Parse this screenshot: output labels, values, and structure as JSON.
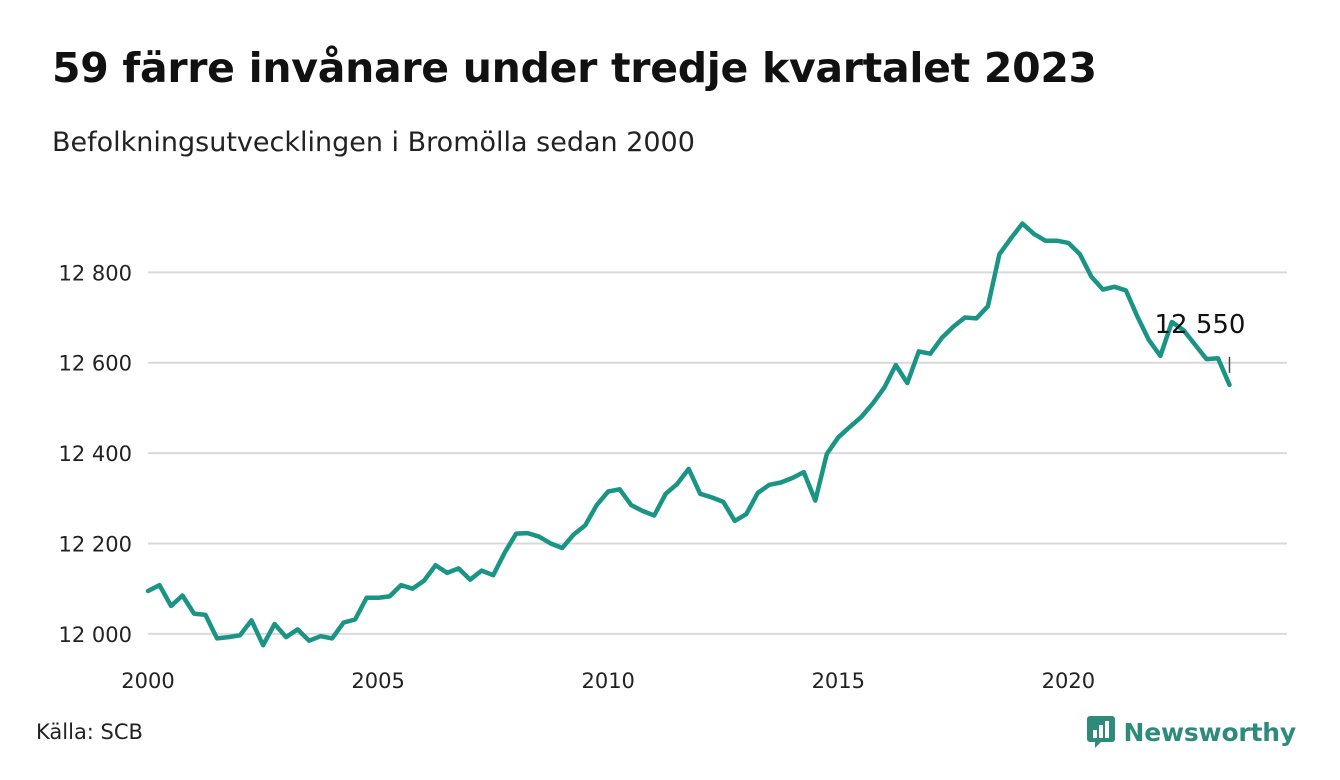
{
  "header": {
    "title": "59 färre invånare under tredje kvartalet 2023",
    "subtitle": "Befolkningsutvecklingen i Bromölla sedan 2000"
  },
  "footer": {
    "source": "Källa: SCB",
    "brand": "Newsworthy",
    "brand_icon": "newsworthy-logo-icon"
  },
  "colors": {
    "line": "#1a9485",
    "grid": "#d9d9d9",
    "text": "#111111",
    "brand": "#2e8b7b"
  },
  "chart_data": {
    "type": "line",
    "title": "59 färre invånare under tredje kvartalet 2023",
    "subtitle": "Befolkningsutvecklingen i Bromölla sedan 2000",
    "xlabel": "",
    "ylabel": "",
    "xlim": [
      2000,
      2024.75
    ],
    "ylim": [
      11960,
      12960
    ],
    "x_ticks": [
      2000,
      2005,
      2010,
      2015,
      2020
    ],
    "y_ticks": [
      12000,
      12200,
      12400,
      12600,
      12800
    ],
    "y_tick_labels": [
      "12 000",
      "12 200",
      "12 400",
      "12 600",
      "12 800"
    ],
    "grid": true,
    "legend": "none",
    "x_unit": "year (quarterly)",
    "series": [
      {
        "values": [
          12095,
          12108,
          12062,
          12085,
          12045,
          12042,
          11990,
          11993,
          11997,
          12030,
          11975,
          12022,
          11993,
          12010,
          11985,
          11995,
          11990,
          12025,
          12032,
          12080,
          12080,
          12083,
          12108,
          12100,
          12118,
          12152,
          12135,
          12145,
          12120,
          12140,
          12130,
          12180,
          12222,
          12223,
          12215,
          12200,
          12190,
          12220,
          12240,
          12285,
          12315,
          12320,
          12285,
          12272,
          12262,
          12310,
          12332,
          12365,
          12310,
          12302,
          12292,
          12250,
          12265,
          12312,
          12330,
          12335,
          12345,
          12358,
          12295,
          12398,
          12435,
          12458,
          12480,
          12510,
          12545,
          12595,
          12555,
          12625,
          12620,
          12655,
          12680,
          12700,
          12698,
          12725,
          12840,
          12875,
          12908,
          12885,
          12870,
          12870,
          12865,
          12840,
          12790,
          12762,
          12768,
          12760,
          12702,
          12650,
          12615,
          12690,
          12672,
          12640,
          12608,
          12610,
          12551
        ]
      }
    ],
    "x_start": 2000,
    "x_step": 0.25,
    "end_label": "12 550"
  }
}
